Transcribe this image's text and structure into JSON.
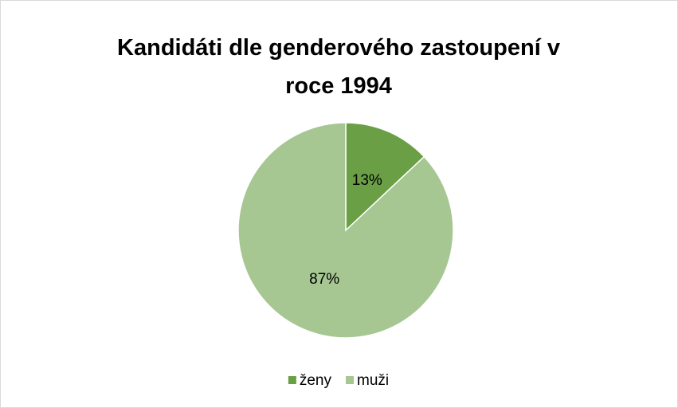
{
  "chart_data": {
    "type": "pie",
    "title": "Kandidáti dle genderového zastoupení v roce 1994",
    "categories": [
      "ženy",
      "muži"
    ],
    "values": [
      13,
      87
    ],
    "value_labels": [
      "13%",
      "87%"
    ],
    "colors": [
      "#6a9f45",
      "#a6c692"
    ],
    "legend": "bottom"
  }
}
